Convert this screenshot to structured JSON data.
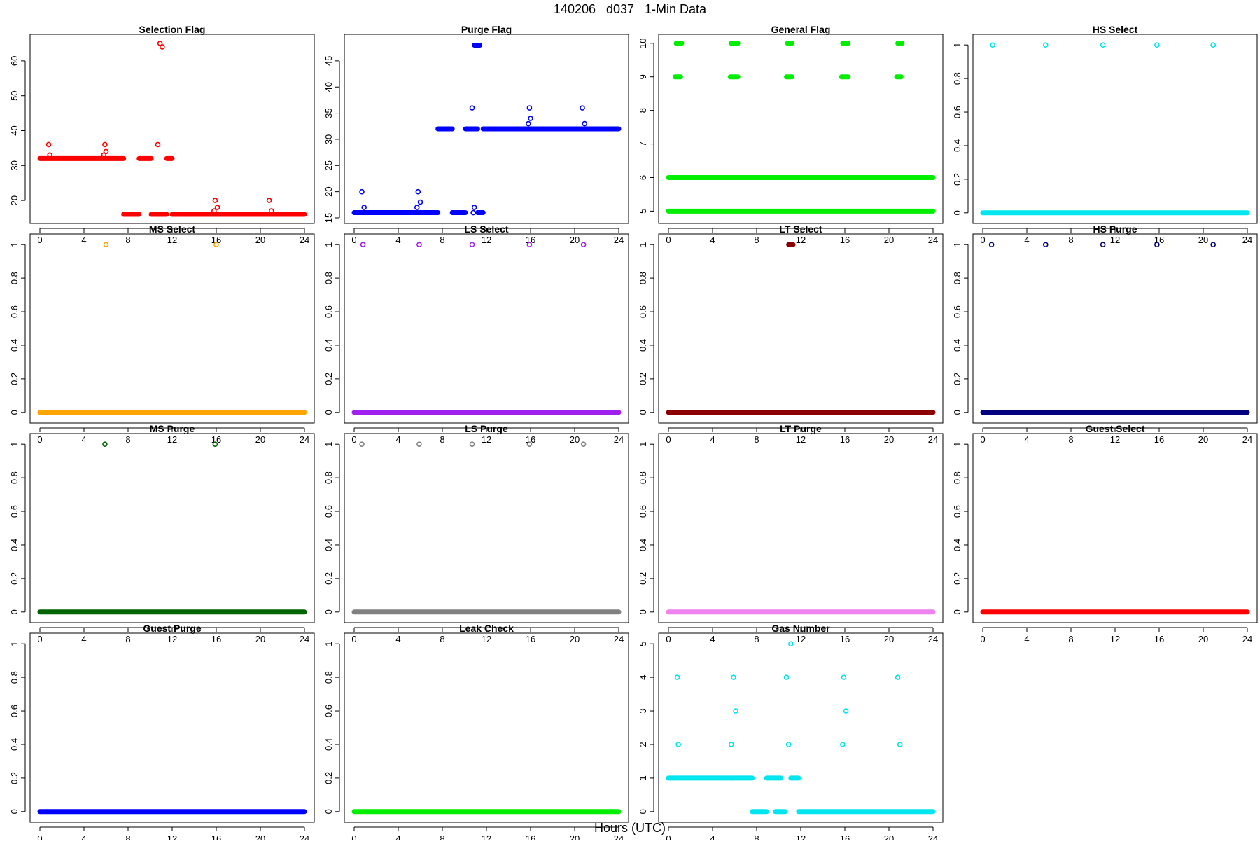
{
  "figure": {
    "title": "140206   d037   1-Min Data",
    "xlabel": "Hours (UTC)"
  },
  "chart_data": [
    {
      "type": "scatter",
      "title": "Selection Flag",
      "color": "#ff0000",
      "xlim": [
        0,
        24
      ],
      "ylim": [
        15,
        66
      ],
      "xticks": [
        0,
        4,
        8,
        12,
        16,
        20,
        24
      ],
      "yticks": [
        20,
        30,
        40,
        50,
        60
      ],
      "segments": [
        [
          0,
          7.6,
          32
        ],
        [
          7.6,
          9.0,
          16
        ],
        [
          9.0,
          10.1,
          32
        ],
        [
          10.1,
          11.5,
          16
        ],
        [
          11.5,
          12.0,
          32
        ],
        [
          12.0,
          24,
          16
        ]
      ],
      "points": [
        [
          0.8,
          36
        ],
        [
          0.9,
          33
        ],
        [
          5.8,
          33
        ],
        [
          5.9,
          36
        ],
        [
          6.0,
          34
        ],
        [
          10.7,
          36
        ],
        [
          10.9,
          65
        ],
        [
          11.1,
          64
        ],
        [
          15.8,
          17
        ],
        [
          15.9,
          20
        ],
        [
          16.1,
          18
        ],
        [
          20.8,
          20
        ],
        [
          21.0,
          17
        ]
      ]
    },
    {
      "type": "scatter",
      "title": "Purge Flag",
      "color": "#0000ff",
      "xlim": [
        0,
        24
      ],
      "ylim": [
        15,
        49
      ],
      "xticks": [
        0,
        4,
        8,
        12,
        16,
        20,
        24
      ],
      "yticks": [
        15,
        20,
        25,
        30,
        35,
        40,
        45
      ],
      "segments": [
        [
          0,
          7.6,
          16
        ],
        [
          7.6,
          8.9,
          32
        ],
        [
          8.9,
          10.1,
          16
        ],
        [
          10.1,
          11.2,
          32
        ],
        [
          11.2,
          11.7,
          16
        ],
        [
          11.7,
          24,
          32
        ],
        [
          10.9,
          11.4,
          48
        ]
      ],
      "points": [
        [
          0.7,
          20
        ],
        [
          0.9,
          17
        ],
        [
          5.7,
          17
        ],
        [
          5.8,
          20
        ],
        [
          6.0,
          18
        ],
        [
          10.7,
          36
        ],
        [
          10.8,
          16
        ],
        [
          10.9,
          17
        ],
        [
          15.8,
          33
        ],
        [
          15.9,
          36
        ],
        [
          16.0,
          34
        ],
        [
          20.7,
          36
        ],
        [
          20.9,
          33
        ]
      ]
    },
    {
      "type": "scatter",
      "title": "General Flag",
      "color": "#00ee00",
      "xlim": [
        0,
        24
      ],
      "ylim": [
        4.8,
        10.1
      ],
      "xticks": [
        0,
        4,
        8,
        12,
        16,
        20,
        24
      ],
      "yticks": [
        5,
        6,
        7,
        8,
        9,
        10
      ],
      "segments": [
        [
          0,
          24,
          5
        ],
        [
          0,
          24,
          6
        ],
        [
          0.6,
          1.1,
          9
        ],
        [
          0.7,
          1.2,
          10
        ],
        [
          5.6,
          6.3,
          9
        ],
        [
          5.7,
          6.3,
          10
        ],
        [
          10.7,
          11.2,
          9
        ],
        [
          10.8,
          11.2,
          10
        ],
        [
          15.7,
          16.3,
          9
        ],
        [
          15.8,
          16.3,
          10
        ],
        [
          20.7,
          21.1,
          9
        ],
        [
          20.8,
          21.2,
          10
        ]
      ],
      "points": []
    },
    {
      "type": "scatter",
      "title": "HS Select",
      "color": "#00e5ee",
      "xlim": [
        0,
        24
      ],
      "ylim": [
        -0.03,
        1.03
      ],
      "xticks": [
        0,
        4,
        8,
        12,
        16,
        20,
        24
      ],
      "yticks": [
        0.0,
        0.2,
        0.4,
        0.6,
        0.8,
        1.0
      ],
      "segments": [
        [
          0,
          24,
          0
        ]
      ],
      "points": [
        [
          0.9,
          1
        ],
        [
          5.7,
          1
        ],
        [
          10.9,
          1
        ],
        [
          15.8,
          1
        ],
        [
          20.9,
          1
        ]
      ]
    },
    {
      "type": "scatter",
      "title": "MS Select",
      "color": "#ffa500",
      "xlim": [
        0,
        24
      ],
      "ylim": [
        -0.03,
        1.03
      ],
      "xticks": [
        0,
        4,
        8,
        12,
        16,
        20,
        24
      ],
      "yticks": [
        0.0,
        0.2,
        0.4,
        0.6,
        0.8,
        1.0
      ],
      "segments": [
        [
          0,
          24,
          0
        ]
      ],
      "points": [
        [
          6.0,
          1
        ],
        [
          16.0,
          1
        ]
      ]
    },
    {
      "type": "scatter",
      "title": "LS Select",
      "color": "#a020f0",
      "xlim": [
        0,
        24
      ],
      "ylim": [
        -0.03,
        1.03
      ],
      "xticks": [
        0,
        4,
        8,
        12,
        16,
        20,
        24
      ],
      "yticks": [
        0.0,
        0.2,
        0.4,
        0.6,
        0.8,
        1.0
      ],
      "segments": [
        [
          0,
          24,
          0
        ]
      ],
      "points": [
        [
          0.8,
          1
        ],
        [
          5.9,
          1
        ],
        [
          10.7,
          1
        ],
        [
          15.9,
          1
        ],
        [
          20.8,
          1
        ]
      ]
    },
    {
      "type": "scatter",
      "title": "LT Select",
      "color": "#8b0000",
      "xlim": [
        0,
        24
      ],
      "ylim": [
        -0.03,
        1.03
      ],
      "xticks": [
        0,
        4,
        8,
        12,
        16,
        20,
        24
      ],
      "yticks": [
        0.0,
        0.2,
        0.4,
        0.6,
        0.8,
        1.0
      ],
      "segments": [
        [
          0,
          24,
          0
        ],
        [
          10.9,
          11.3,
          1
        ]
      ],
      "points": []
    },
    {
      "type": "scatter",
      "title": "HS Purge",
      "color": "#000080",
      "xlim": [
        0,
        24
      ],
      "ylim": [
        -0.03,
        1.03
      ],
      "xticks": [
        0,
        4,
        8,
        12,
        16,
        20,
        24
      ],
      "yticks": [
        0.0,
        0.2,
        0.4,
        0.6,
        0.8,
        1.0
      ],
      "segments": [
        [
          0,
          24,
          0
        ]
      ],
      "points": [
        [
          0.8,
          1
        ],
        [
          5.7,
          1
        ],
        [
          10.9,
          1
        ],
        [
          15.8,
          1
        ],
        [
          20.9,
          1
        ]
      ]
    },
    {
      "type": "scatter",
      "title": "MS Purge",
      "color": "#006400",
      "xlim": [
        0,
        24
      ],
      "ylim": [
        -0.03,
        1.03
      ],
      "xticks": [
        0,
        4,
        8,
        12,
        16,
        20,
        24
      ],
      "yticks": [
        0.0,
        0.2,
        0.4,
        0.6,
        0.8,
        1.0
      ],
      "segments": [
        [
          0,
          24,
          0
        ]
      ],
      "points": [
        [
          5.9,
          1
        ],
        [
          15.9,
          1
        ]
      ]
    },
    {
      "type": "scatter",
      "title": "LS Purge",
      "color": "#808080",
      "xlim": [
        0,
        24
      ],
      "ylim": [
        -0.03,
        1.03
      ],
      "xticks": [
        0,
        4,
        8,
        12,
        16,
        20,
        24
      ],
      "yticks": [
        0.0,
        0.2,
        0.4,
        0.6,
        0.8,
        1.0
      ],
      "segments": [
        [
          0,
          24,
          0
        ]
      ],
      "points": [
        [
          0.7,
          1
        ],
        [
          5.9,
          1
        ],
        [
          10.7,
          1
        ],
        [
          15.9,
          1
        ],
        [
          20.8,
          1
        ]
      ]
    },
    {
      "type": "scatter",
      "title": "LT Purge",
      "color": "#ee82ee",
      "xlim": [
        0,
        24
      ],
      "ylim": [
        -0.03,
        1.03
      ],
      "xticks": [
        0,
        4,
        8,
        12,
        16,
        20,
        24
      ],
      "yticks": [
        0.0,
        0.2,
        0.4,
        0.6,
        0.8,
        1.0
      ],
      "segments": [
        [
          0,
          24,
          0
        ]
      ],
      "points": []
    },
    {
      "type": "scatter",
      "title": "Guest Select",
      "color": "#ff0000",
      "xlim": [
        0,
        24
      ],
      "ylim": [
        -0.03,
        1.03
      ],
      "xticks": [
        0,
        4,
        8,
        12,
        16,
        20,
        24
      ],
      "yticks": [
        0.0,
        0.2,
        0.4,
        0.6,
        0.8,
        1.0
      ],
      "segments": [
        [
          0,
          24,
          0
        ]
      ],
      "points": []
    },
    {
      "type": "scatter",
      "title": "Guest Purge",
      "color": "#0000ff",
      "xlim": [
        0,
        24
      ],
      "ylim": [
        -0.03,
        1.03
      ],
      "xticks": [
        0,
        4,
        8,
        12,
        16,
        20,
        24
      ],
      "yticks": [
        0.0,
        0.2,
        0.4,
        0.6,
        0.8,
        1.0
      ],
      "segments": [
        [
          0,
          24,
          0
        ]
      ],
      "points": []
    },
    {
      "type": "scatter",
      "title": "Leak Check",
      "color": "#00ee00",
      "xlim": [
        0,
        24
      ],
      "ylim": [
        -0.03,
        1.03
      ],
      "xticks": [
        0,
        4,
        8,
        12,
        16,
        20,
        24
      ],
      "yticks": [
        0.0,
        0.2,
        0.4,
        0.6,
        0.8,
        1.0
      ],
      "segments": [
        [
          0,
          24,
          0
        ]
      ],
      "points": []
    },
    {
      "type": "scatter",
      "title": "Gas Number",
      "color": "#00e5ee",
      "xlim": [
        0,
        24
      ],
      "ylim": [
        -0.15,
        5.15
      ],
      "xticks": [
        0,
        4,
        8,
        12,
        16,
        20,
        24
      ],
      "yticks": [
        0,
        1,
        2,
        3,
        4,
        5
      ],
      "segments": [
        [
          0,
          5.8,
          1
        ],
        [
          5.8,
          7.6,
          1
        ],
        [
          7.6,
          8.9,
          0
        ],
        [
          8.9,
          10.2,
          1
        ],
        [
          9.7,
          10.6,
          0
        ],
        [
          11.1,
          11.8,
          1
        ],
        [
          11.8,
          24,
          0
        ]
      ],
      "points": [
        [
          0.8,
          4
        ],
        [
          0.9,
          2
        ],
        [
          5.7,
          2
        ],
        [
          5.9,
          4
        ],
        [
          6.1,
          3
        ],
        [
          10.7,
          4
        ],
        [
          10.9,
          2
        ],
        [
          11.1,
          5
        ],
        [
          15.8,
          2
        ],
        [
          15.9,
          4
        ],
        [
          16.1,
          3
        ],
        [
          20.8,
          4
        ],
        [
          21.0,
          2
        ]
      ]
    }
  ]
}
